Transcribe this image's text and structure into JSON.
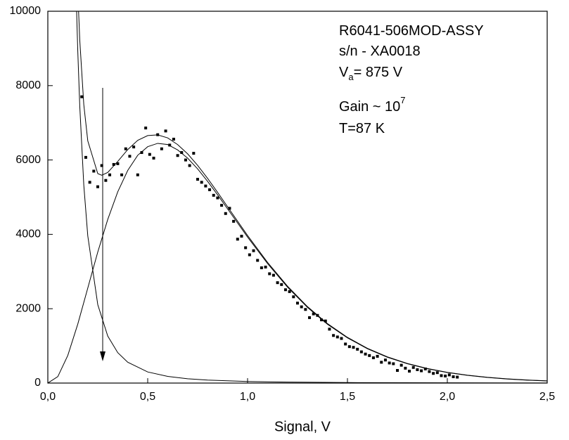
{
  "chart_data": {
    "type": "scatter",
    "xlabel": "Signal, V",
    "annotations": [
      {
        "text": "R6041-506MOD-ASSY"
      },
      {
        "text": "s/n - XA0018"
      },
      {
        "text": "V",
        "sub": "a",
        "after": "= 875 V"
      },
      {
        "text": "Gain ~ 10",
        "sup": "7"
      },
      {
        "text": "T=87 K"
      }
    ],
    "xlim": [
      0,
      2.5
    ],
    "ylim": [
      0,
      10000
    ],
    "xticks": [
      {
        "value": 0,
        "label": "0,0"
      },
      {
        "value": 0.5,
        "label": "0,5"
      },
      {
        "value": 1.0,
        "label": "1,0"
      },
      {
        "value": 1.5,
        "label": "1,5"
      },
      {
        "value": 2.0,
        "label": "2,0"
      },
      {
        "value": 2.5,
        "label": "2,5"
      }
    ],
    "yticks": [
      0,
      2000,
      4000,
      6000,
      8000,
      10000
    ],
    "series": [
      {
        "type": "scatter",
        "color": "#000000",
        "x": [
          0.17,
          0.19,
          0.21,
          0.23,
          0.25,
          0.27,
          0.29,
          0.31,
          0.33,
          0.35,
          0.37,
          0.39,
          0.41,
          0.43,
          0.45,
          0.47,
          0.49,
          0.51,
          0.53,
          0.55,
          0.57,
          0.59,
          0.61,
          0.63,
          0.65,
          0.67,
          0.69,
          0.71,
          0.73,
          0.75,
          0.77,
          0.79,
          0.81,
          0.83,
          0.85,
          0.87,
          0.89,
          0.91,
          0.93,
          0.95,
          0.97,
          0.99,
          1.01,
          1.03,
          1.05,
          1.07,
          1.09,
          1.11,
          1.13,
          1.15,
          1.17,
          1.19,
          1.21,
          1.23,
          1.25,
          1.27,
          1.29,
          1.31,
          1.33,
          1.35,
          1.37,
          1.39,
          1.41,
          1.43,
          1.45,
          1.47,
          1.49,
          1.51,
          1.53,
          1.55,
          1.57,
          1.59,
          1.61,
          1.63,
          1.65,
          1.67,
          1.69,
          1.71,
          1.73,
          1.75,
          1.77,
          1.79,
          1.81,
          1.83,
          1.85,
          1.87,
          1.89,
          1.91,
          1.93,
          1.95,
          1.97,
          1.99,
          2.01,
          2.03,
          2.05
        ],
        "values": [
          7700,
          6070,
          5400,
          5700,
          5280,
          5850,
          5450,
          5600,
          5880,
          5900,
          5600,
          6300,
          6100,
          6350,
          5600,
          6200,
          6860,
          6150,
          6050,
          6680,
          6300,
          6780,
          6400,
          6560,
          6120,
          6200,
          6000,
          5850,
          6180,
          5480,
          5400,
          5300,
          5200,
          5050,
          4980,
          4780,
          4560,
          4700,
          4350,
          3870,
          3950,
          3640,
          3450,
          3560,
          3300,
          3100,
          3120,
          2940,
          2900,
          2700,
          2650,
          2510,
          2460,
          2320,
          2150,
          2050,
          1980,
          1760,
          1860,
          1820,
          1700,
          1670,
          1450,
          1280,
          1240,
          1200,
          1050,
          980,
          960,
          910,
          840,
          780,
          740,
          680,
          720,
          560,
          620,
          540,
          520,
          340,
          480,
          400,
          320,
          420,
          360,
          330,
          380,
          310,
          260,
          280,
          200,
          190,
          220,
          170,
          160
        ]
      },
      {
        "type": "line",
        "color": "#000000",
        "x": [
          0,
          0.05,
          0.1,
          0.15,
          0.2,
          0.25,
          0.3,
          0.35,
          0.4,
          0.45,
          0.5,
          0.55,
          0.6,
          0.65,
          0.7,
          0.75,
          0.8,
          0.85,
          0.9,
          0.95,
          1.0,
          1.1,
          1.2,
          1.3,
          1.4,
          1.5,
          1.6,
          1.7,
          1.8,
          1.9,
          2.0,
          2.1,
          2.2,
          2.3,
          2.4,
          2.5
        ],
        "values": [
          0,
          174,
          743,
          1587,
          2555,
          3524,
          4401,
          5143,
          5718,
          6126,
          6357,
          6447,
          6415,
          6270,
          6049,
          5760,
          5424,
          5062,
          4683,
          4305,
          3926,
          3214,
          2579,
          2035,
          1582,
          1215,
          924,
          695,
          520,
          385,
          283,
          207,
          151,
          109,
          79,
          57
        ]
      },
      {
        "type": "line",
        "color": "#000000",
        "x": [
          0.14,
          0.145,
          0.15,
          0.16,
          0.18,
          0.2,
          0.25,
          0.3,
          0.35,
          0.4,
          0.5,
          0.6,
          0.7,
          0.8,
          1.0,
          1.2,
          1.5,
          2.0,
          2.5
        ],
        "values": [
          10830,
          9820,
          8920,
          7440,
          5330,
          3960,
          2110,
          1263,
          818,
          561,
          299,
          179,
          116,
          80,
          42,
          25,
          13.5,
          6,
          3
        ]
      },
      {
        "type": "line",
        "color": "#000000",
        "x": [
          0.14,
          0.15,
          0.16,
          0.18,
          0.2,
          0.25,
          0.27,
          0.3,
          0.35,
          0.4,
          0.45,
          0.5,
          0.55,
          0.6,
          0.65,
          0.7,
          0.75,
          0.8,
          0.85,
          0.9,
          0.95,
          1.0,
          1.1,
          1.2,
          1.3,
          1.4,
          1.5,
          1.6,
          1.7,
          1.8,
          1.9,
          2.0,
          2.1,
          2.2,
          2.3,
          2.4,
          2.5
        ],
        "values": [
          12230,
          10507,
          9215,
          7493,
          6515,
          5634,
          5590,
          5664,
          5961,
          6279,
          6529,
          6656,
          6676,
          6594,
          6413,
          6165,
          5855,
          5504,
          5129,
          4740,
          4354,
          3968,
          3246,
          2604,
          2055,
          1598,
          1229,
          935,
          705,
          528,
          392,
          289,
          212,
          156,
          113,
          82,
          60
        ]
      }
    ]
  }
}
